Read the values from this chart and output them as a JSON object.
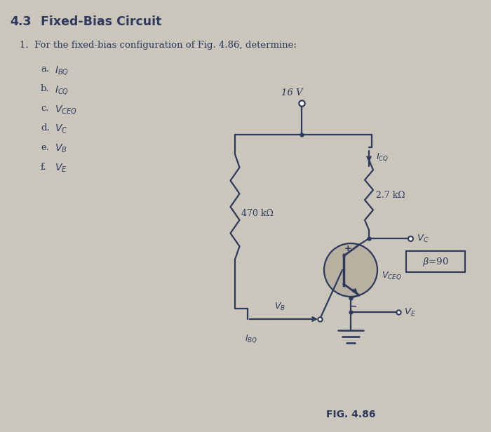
{
  "bg_color": "#cbc6bb",
  "line_color": "#2d3a5e",
  "title": "4.3   Fixed-Bias Circuit",
  "problem_text": "1.  For the fixed-bias configuration of Fig. 4.86, determine:",
  "items": [
    "a.  $I_{BQ}$",
    "b.  $I_{CQ}$",
    "c.  $V_{CEQ}$",
    "d.  $V_C$",
    "e.  $V_B$",
    "f.  $V_E$"
  ],
  "fig_label": "FIG. 4.86",
  "voltage_label": "16 V",
  "r1_label": "470 kΩ",
  "r2_label": "2.7 kΩ",
  "icq_label": "$I_{CQ}$",
  "vc_label": "$V_C$",
  "vb_label": "$V_B$",
  "vceq_label": "$V_{CEQ}$",
  "ve_label": "$V_E$",
  "ibq_label": "$I_{BQ}$",
  "beta_label": "β=90"
}
